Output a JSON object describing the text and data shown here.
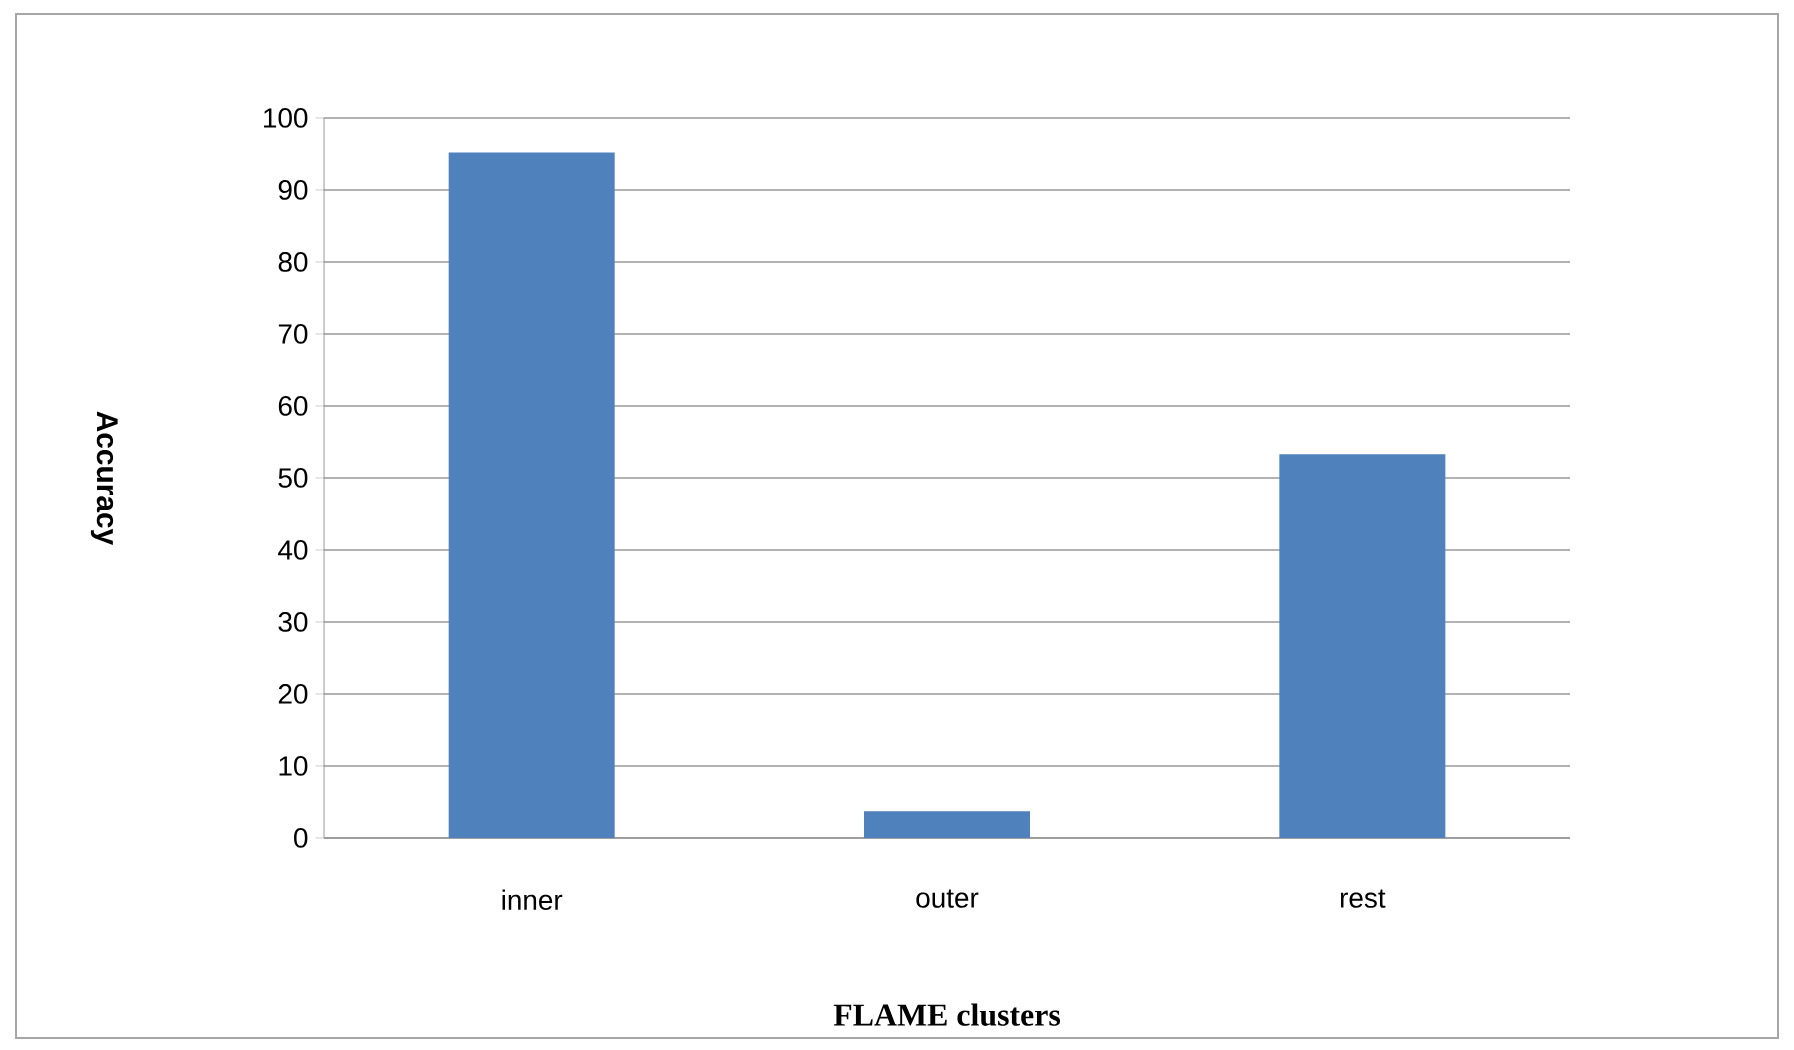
{
  "chart_data": {
    "type": "bar",
    "xlabel": "FLAME clusters",
    "ylabel": "Accuracy",
    "categories": [
      "inner",
      "outer",
      "rest"
    ],
    "values": [
      95.2,
      3.7,
      53.3
    ],
    "color": "#4f81bd",
    "ylim": [
      0,
      100
    ],
    "yticks": [
      0,
      10,
      20,
      30,
      40,
      50,
      60,
      70,
      80,
      90,
      100
    ],
    "grid": "y"
  }
}
